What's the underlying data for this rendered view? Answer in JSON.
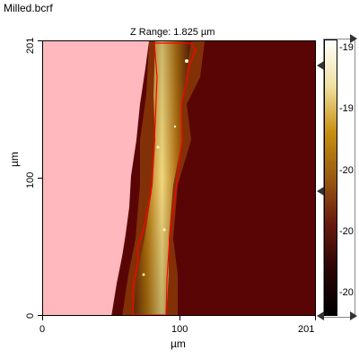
{
  "title": "Milled.bcrf",
  "z_range_label": "Z Range:  1.825 µm",
  "axes": {
    "x_label": "µm",
    "y_label": "µm",
    "x_ticks": [
      "0",
      "100",
      "201"
    ],
    "y_ticks": [
      "0",
      "100",
      "201"
    ]
  },
  "colorbar": {
    "labels": [
      "-19",
      "-19",
      "-20",
      "-20",
      "-20"
    ],
    "gradient_colors": [
      "#ffffff",
      "#f0e0a0",
      "#c89010",
      "#9a5a10",
      "#6a1a10",
      "#2a0505",
      "#000000"
    ]
  },
  "image": {
    "excluded_region_color": "#ffb8bd",
    "background_color": "#5a0505",
    "outline_color": "#ff0000"
  }
}
